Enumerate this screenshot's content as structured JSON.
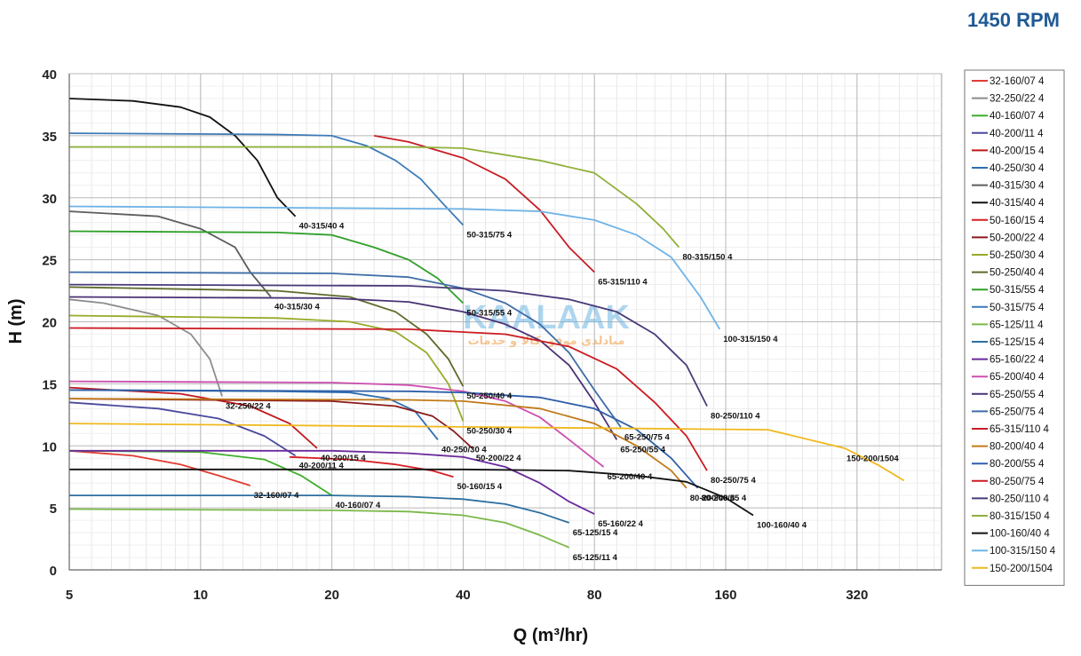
{
  "header": {
    "rpm": "1450 RPM"
  },
  "watermark": {
    "main": "KAALAAK",
    "sub": "مبادلدی موفق کالا و خدمات"
  },
  "chart_data": {
    "type": "line",
    "xlabel": "Q (m³/hr)",
    "ylabel": "H (m)",
    "x_scale": "log2",
    "xlim": [
      5,
      500
    ],
    "ylim": [
      0,
      40
    ],
    "x_ticks": [
      5,
      10,
      20,
      40,
      80,
      160,
      320
    ],
    "y_ticks": [
      0,
      5,
      10,
      15,
      20,
      25,
      30,
      35,
      40
    ],
    "grid": true,
    "legend_position": "right",
    "series": [
      {
        "name": "32-160/07 4",
        "label": "32-160/07 4",
        "color": "#e03c31",
        "points": [
          [
            5,
            9.6
          ],
          [
            7,
            9.2
          ],
          [
            9,
            8.5
          ],
          [
            11,
            7.6
          ],
          [
            13,
            6.8
          ]
        ]
      },
      {
        "name": "32-250/22 4",
        "label": "32-250/22 4",
        "color": "#8c8c8c",
        "points": [
          [
            5,
            21.8
          ],
          [
            6,
            21.5
          ],
          [
            8,
            20.5
          ],
          [
            9.5,
            19
          ],
          [
            10.5,
            17
          ],
          [
            11.2,
            14
          ]
        ]
      },
      {
        "name": "40-160/07 4",
        "label": "40-160/07 4",
        "color": "#3fae2a",
        "points": [
          [
            5,
            9.6
          ],
          [
            10,
            9.5
          ],
          [
            14,
            8.9
          ],
          [
            17,
            7.6
          ],
          [
            20,
            6.0
          ]
        ]
      },
      {
        "name": "40-200/11 4",
        "label": "40-200/11 4",
        "color": "#4a4a9c",
        "points": [
          [
            5,
            13.5
          ],
          [
            8,
            13.0
          ],
          [
            11,
            12.2
          ],
          [
            14,
            10.8
          ],
          [
            16.5,
            9.2
          ]
        ]
      },
      {
        "name": "40-200/15 4",
        "label": "40-200/15 4",
        "color": "#c0181d",
        "points": [
          [
            5,
            14.7
          ],
          [
            9,
            14.2
          ],
          [
            13,
            13.2
          ],
          [
            16,
            11.8
          ],
          [
            18.5,
            9.8
          ]
        ]
      },
      {
        "name": "40-250/30 4",
        "label": "40-250/30 4",
        "color": "#2e6fb0",
        "points": [
          [
            5,
            14.5
          ],
          [
            15,
            14.4
          ],
          [
            22,
            14.3
          ],
          [
            27,
            13.8
          ],
          [
            31,
            12.8
          ],
          [
            35,
            10.5
          ]
        ]
      },
      {
        "name": "40-315/30 4",
        "label": "40-315/30 4",
        "color": "#5d5d5d",
        "points": [
          [
            5,
            28.9
          ],
          [
            8,
            28.5
          ],
          [
            10,
            27.5
          ],
          [
            12,
            26
          ],
          [
            13,
            24
          ],
          [
            14.5,
            22
          ]
        ]
      },
      {
        "name": "40-315/40 4",
        "label": "40-315/40 4",
        "color": "#111111",
        "points": [
          [
            5,
            38
          ],
          [
            7,
            37.8
          ],
          [
            9,
            37.3
          ],
          [
            10.5,
            36.5
          ],
          [
            12,
            35
          ],
          [
            13.5,
            33
          ],
          [
            15,
            30
          ],
          [
            16.5,
            28.5
          ]
        ]
      },
      {
        "name": "50-160/15 4",
        "label": "50-160/15 4",
        "color": "#d61f26",
        "points": [
          [
            16,
            9.1
          ],
          [
            22,
            8.9
          ],
          [
            28,
            8.5
          ],
          [
            34,
            8.0
          ],
          [
            38,
            7.5
          ]
        ]
      },
      {
        "name": "50-200/22 4",
        "label": "50-200/22 4",
        "color": "#8a1a1a",
        "points": [
          [
            5,
            13.8
          ],
          [
            20,
            13.6
          ],
          [
            28,
            13.2
          ],
          [
            34,
            12.4
          ],
          [
            38,
            11.2
          ],
          [
            42,
            9.8
          ]
        ]
      },
      {
        "name": "50-250/30 4",
        "label": "50-250/30 4",
        "color": "#9aaa2a",
        "points": [
          [
            5,
            20.5
          ],
          [
            15,
            20.3
          ],
          [
            22,
            20.0
          ],
          [
            28,
            19.2
          ],
          [
            33,
            17.5
          ],
          [
            37,
            15
          ],
          [
            40,
            12
          ]
        ]
      },
      {
        "name": "50-250/40 4",
        "label": "50-250/40 4",
        "color": "#5c6b2a",
        "points": [
          [
            5,
            22.8
          ],
          [
            15,
            22.5
          ],
          [
            22,
            22.0
          ],
          [
            28,
            20.8
          ],
          [
            33,
            19.0
          ],
          [
            37,
            17
          ],
          [
            40,
            14.8
          ]
        ]
      },
      {
        "name": "50-315/55 4",
        "label": "50-315/55 4",
        "color": "#2fa02a",
        "points": [
          [
            5,
            27.3
          ],
          [
            15,
            27.2
          ],
          [
            20,
            27
          ],
          [
            25,
            26
          ],
          [
            30,
            25
          ],
          [
            35,
            23.5
          ],
          [
            40,
            21.5
          ]
        ]
      },
      {
        "name": "50-315/75 4",
        "label": "50-315/75 4",
        "color": "#3d7ab8",
        "points": [
          [
            5,
            35.2
          ],
          [
            15,
            35.1
          ],
          [
            20,
            35
          ],
          [
            24,
            34.2
          ],
          [
            28,
            33
          ],
          [
            32,
            31.5
          ],
          [
            36,
            29.5
          ],
          [
            40,
            27.8
          ]
        ]
      },
      {
        "name": "65-125/11 4",
        "label": "65-125/11 4",
        "color": "#7bb84a",
        "points": [
          [
            5,
            4.9
          ],
          [
            20,
            4.8
          ],
          [
            30,
            4.7
          ],
          [
            40,
            4.4
          ],
          [
            50,
            3.8
          ],
          [
            60,
            2.8
          ],
          [
            70,
            1.8
          ]
        ]
      },
      {
        "name": "65-125/15 4",
        "label": "65-125/15 4",
        "color": "#2d6fa0",
        "points": [
          [
            5,
            6.0
          ],
          [
            20,
            6.0
          ],
          [
            30,
            5.9
          ],
          [
            40,
            5.7
          ],
          [
            50,
            5.3
          ],
          [
            60,
            4.6
          ],
          [
            70,
            3.8
          ]
        ]
      },
      {
        "name": "65-160/22 4",
        "label": "65-160/22 4",
        "color": "#6a2a9c",
        "points": [
          [
            5,
            9.6
          ],
          [
            20,
            9.6
          ],
          [
            30,
            9.4
          ],
          [
            40,
            9.1
          ],
          [
            50,
            8.3
          ],
          [
            60,
            7.0
          ],
          [
            70,
            5.5
          ],
          [
            80,
            4.5
          ]
        ]
      },
      {
        "name": "65-200/40 4",
        "label": "65-200/40 4",
        "color": "#cc4fb0",
        "points": [
          [
            5,
            15.2
          ],
          [
            20,
            15.1
          ],
          [
            30,
            14.9
          ],
          [
            40,
            14.4
          ],
          [
            50,
            13.6
          ],
          [
            60,
            12.3
          ],
          [
            70,
            10.5
          ],
          [
            84,
            8.3
          ]
        ]
      },
      {
        "name": "65-250/55 4",
        "label": "65-250/55 4",
        "color": "#4a3275",
        "points": [
          [
            5,
            22
          ],
          [
            20,
            21.9
          ],
          [
            30,
            21.6
          ],
          [
            40,
            20.8
          ],
          [
            50,
            19.8
          ],
          [
            60,
            18.5
          ],
          [
            70,
            16.5
          ],
          [
            80,
            13.5
          ],
          [
            90,
            10.5
          ]
        ]
      },
      {
        "name": "65-250/75 4",
        "label": "65-250/75 4",
        "color": "#3f6ea8",
        "points": [
          [
            5,
            24
          ],
          [
            20,
            23.9
          ],
          [
            30,
            23.6
          ],
          [
            40,
            22.7
          ],
          [
            50,
            21.5
          ],
          [
            60,
            19.8
          ],
          [
            70,
            17.5
          ],
          [
            80,
            14.5
          ],
          [
            92,
            11.5
          ]
        ]
      },
      {
        "name": "65-315/110 4",
        "label": "65-315/110 4",
        "color": "#c81d25",
        "points": [
          [
            25,
            35
          ],
          [
            30,
            34.5
          ],
          [
            40,
            33.2
          ],
          [
            50,
            31.5
          ],
          [
            60,
            29
          ],
          [
            70,
            26
          ],
          [
            80,
            24
          ]
        ]
      },
      {
        "name": "80-200/40 4",
        "label": "80-200/40 4",
        "color": "#c07a1a",
        "points": [
          [
            5,
            13.8
          ],
          [
            30,
            13.7
          ],
          [
            40,
            13.6
          ],
          [
            60,
            13.0
          ],
          [
            80,
            11.8
          ],
          [
            100,
            10
          ],
          [
            120,
            8
          ],
          [
            130,
            6.6
          ]
        ]
      },
      {
        "name": "80-200/55 4",
        "label": "80-200/55 4",
        "color": "#2e5fa8",
        "points": [
          [
            5,
            14.5
          ],
          [
            30,
            14.4
          ],
          [
            40,
            14.3
          ],
          [
            60,
            13.9
          ],
          [
            80,
            13
          ],
          [
            100,
            11.3
          ],
          [
            120,
            9
          ],
          [
            138,
            6.6
          ]
        ]
      },
      {
        "name": "80-250/75 4",
        "label": "80-250/75 4",
        "color": "#cc1b22",
        "points": [
          [
            5,
            19.5
          ],
          [
            30,
            19.4
          ],
          [
            50,
            19.0
          ],
          [
            70,
            18
          ],
          [
            90,
            16.2
          ],
          [
            110,
            13.5
          ],
          [
            130,
            10.8
          ],
          [
            145,
            8
          ]
        ]
      },
      {
        "name": "80-250/110 4",
        "label": "80-250/110 4",
        "color": "#4a3a7a",
        "points": [
          [
            5,
            23
          ],
          [
            30,
            22.9
          ],
          [
            50,
            22.5
          ],
          [
            70,
            21.8
          ],
          [
            90,
            20.8
          ],
          [
            110,
            19
          ],
          [
            130,
            16.5
          ],
          [
            145,
            13.2
          ]
        ]
      },
      {
        "name": "80-315/150 4",
        "label": "80-315/150 4",
        "color": "#8fb03a",
        "points": [
          [
            5,
            34.1
          ],
          [
            30,
            34.1
          ],
          [
            40,
            34.0
          ],
          [
            60,
            33.0
          ],
          [
            80,
            32
          ],
          [
            100,
            29.5
          ],
          [
            115,
            27.5
          ],
          [
            125,
            26
          ]
        ]
      },
      {
        "name": "100-160/40 4",
        "label": "100-160/40 4",
        "color": "#111111",
        "points": [
          [
            5,
            8.1
          ],
          [
            40,
            8.1
          ],
          [
            70,
            8.0
          ],
          [
            100,
            7.6
          ],
          [
            130,
            7.1
          ],
          [
            160,
            5.8
          ],
          [
            185,
            4.4
          ]
        ]
      },
      {
        "name": "100-315/150 4",
        "label": "100-315/150 4",
        "color": "#6fb3e6",
        "points": [
          [
            5,
            29.3
          ],
          [
            40,
            29.1
          ],
          [
            60,
            28.9
          ],
          [
            80,
            28.2
          ],
          [
            100,
            27
          ],
          [
            120,
            25.2
          ],
          [
            140,
            22
          ],
          [
            155,
            19.4
          ]
        ]
      },
      {
        "name": "150-200/1504",
        "label": "150-200/1504",
        "color": "#f0b81c",
        "points": [
          [
            5,
            11.8
          ],
          [
            50,
            11.5
          ],
          [
            100,
            11.4
          ],
          [
            200,
            11.3
          ],
          [
            300,
            9.8
          ],
          [
            360,
            8.4
          ],
          [
            410,
            7.2
          ]
        ]
      }
    ]
  }
}
